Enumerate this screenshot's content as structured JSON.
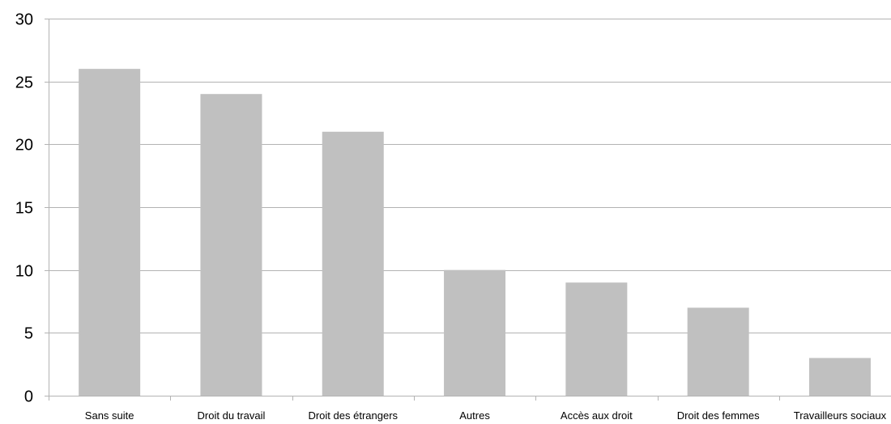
{
  "chart_data": {
    "type": "bar",
    "title": "",
    "xlabel": "",
    "ylabel": "",
    "categories": [
      "Sans suite",
      "Droit du travail",
      "Droit des étrangers",
      "Autres",
      "Accès aux droit",
      "Droit des femmes",
      "Travailleurs sociaux"
    ],
    "values": [
      26,
      24,
      21,
      10,
      9,
      7,
      3
    ],
    "ylim": [
      0,
      30
    ],
    "yticks": [
      "0",
      "5",
      "10",
      "15",
      "20",
      "25",
      "30"
    ],
    "grid": true,
    "legend": "none",
    "colors": {
      "bar": "#c0c0c0",
      "grid": "#b3b3b3",
      "axis": "#b3b3b3"
    }
  }
}
